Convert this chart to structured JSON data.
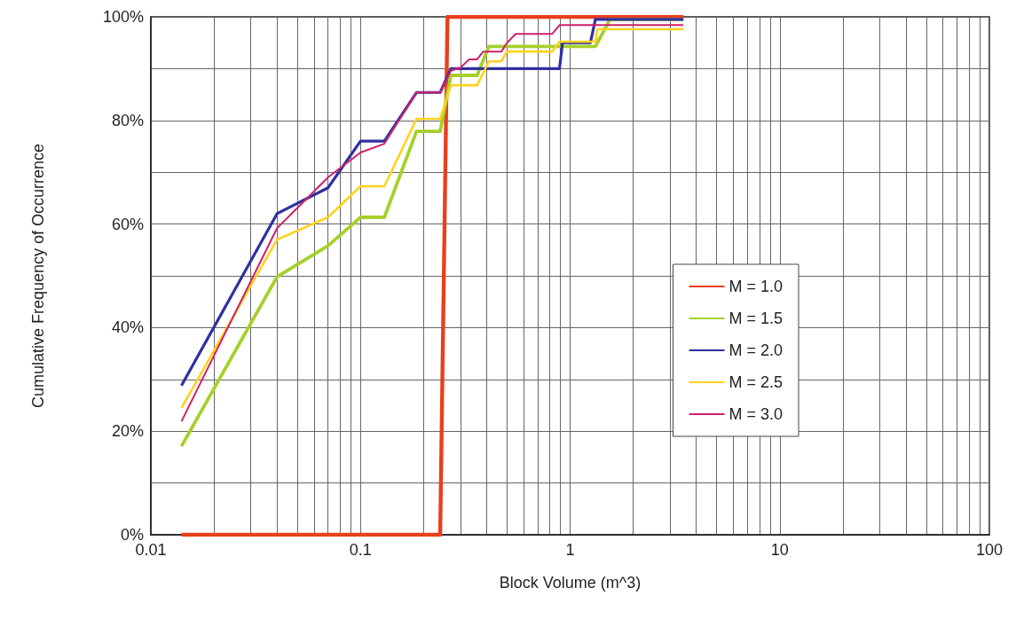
{
  "chart_data": {
    "type": "line",
    "xlabel": "Block Volume (m^3)",
    "ylabel": "Cumulative Frequency of Occurrence",
    "log": "x",
    "grid": true,
    "legend": "right",
    "marker": "none",
    "line_style": "solid",
    "xlim": [
      0.01,
      100
    ],
    "xticks": [
      0.01,
      {
        "value": 0.02,
        "label": null
      },
      {
        "value": 0.03,
        "label": null
      },
      {
        "value": 0.04,
        "label": null
      },
      {
        "value": 0.05,
        "label": null
      },
      {
        "value": 0.06,
        "label": null
      },
      {
        "value": 0.07,
        "label": null
      },
      {
        "value": 0.08,
        "label": null
      },
      {
        "value": 0.09,
        "label": null
      },
      0.1,
      {
        "value": 0.2,
        "label": null
      },
      {
        "value": 0.3,
        "label": null
      },
      {
        "value": 0.4,
        "label": null
      },
      {
        "value": 0.5,
        "label": null
      },
      {
        "value": 0.6,
        "label": null
      },
      {
        "value": 0.7,
        "label": null
      },
      {
        "value": 0.8,
        "label": null
      },
      {
        "value": 0.9,
        "label": null
      },
      1,
      {
        "value": 2,
        "label": null
      },
      {
        "value": 3,
        "label": null
      },
      {
        "value": 4,
        "label": null
      },
      {
        "value": 5,
        "label": null
      },
      {
        "value": 6,
        "label": null
      },
      {
        "value": 7,
        "label": null
      },
      {
        "value": 8,
        "label": null
      },
      {
        "value": 9,
        "label": null
      },
      10,
      {
        "value": 20,
        "label": null
      },
      {
        "value": 30,
        "label": null
      },
      {
        "value": 40,
        "label": null
      },
      {
        "value": 50,
        "label": null
      },
      {
        "value": 60,
        "label": null
      },
      {
        "value": 70,
        "label": null
      },
      {
        "value": 80,
        "label": null
      },
      {
        "value": 90,
        "label": null
      },
      100
    ],
    "ylim": [
      0,
      100
    ],
    "yticks": [
      {
        "value": 0,
        "label": "0%"
      },
      {
        "value": 10,
        "label": null
      },
      {
        "value": 20,
        "label": "20%"
      },
      {
        "value": 30,
        "label": null
      },
      {
        "value": 40,
        "label": "40%"
      },
      {
        "value": 50,
        "label": null
      },
      {
        "value": 60,
        "label": "60%"
      },
      {
        "value": 70,
        "label": null
      },
      {
        "value": 80,
        "label": "80%"
      },
      {
        "value": 90,
        "label": null
      },
      {
        "value": 100,
        "label": "100%"
      }
    ],
    "series": [
      {
        "name": "M = 1.0",
        "color": "#e8401c",
        "x": [
          0.014,
          0.24,
          0.26,
          3.47
        ],
        "values": [
          0,
          0,
          100,
          100
        ]
      },
      {
        "name": "M = 1.5",
        "color": "#a6d02a",
        "x": [
          0.014,
          0.04,
          0.07,
          0.1,
          0.13,
          0.185,
          0.24,
          0.27,
          0.36,
          0.41,
          0.82,
          1.32,
          1.55,
          3.47
        ],
        "values": [
          17.1,
          49.8,
          55.8,
          61.3,
          61.3,
          77.9,
          77.9,
          88.7,
          88.7,
          94.3,
          94.3,
          94.3,
          99.5,
          99.5
        ]
      },
      {
        "name": "M = 2.0",
        "color": "#3030a0",
        "x": [
          0.014,
          0.04,
          0.07,
          0.1,
          0.13,
          0.185,
          0.24,
          0.27,
          0.89,
          0.92,
          1.25,
          1.32,
          3.47
        ],
        "values": [
          28.8,
          62,
          67,
          76,
          76,
          85.4,
          85.4,
          90,
          90,
          95,
          95,
          99.5,
          99.5
        ]
      },
      {
        "name": "M = 2.5",
        "color": "#ffd21c",
        "x": [
          0.014,
          0.04,
          0.07,
          0.1,
          0.13,
          0.185,
          0.24,
          0.27,
          0.36,
          0.41,
          0.47,
          0.5,
          0.82,
          0.89,
          1.32,
          1.35,
          3.47
        ],
        "values": [
          24.5,
          57,
          61.3,
          67.3,
          67.3,
          80.3,
          80.3,
          86.8,
          86.8,
          91.4,
          91.4,
          93.3,
          93.3,
          95.2,
          95.2,
          97.6,
          97.6
        ]
      },
      {
        "name": "M = 3.0",
        "color": "#d0206a",
        "x": [
          0.014,
          0.04,
          0.07,
          0.1,
          0.13,
          0.185,
          0.24,
          0.27,
          0.3,
          0.33,
          0.36,
          0.385,
          0.47,
          0.5,
          0.55,
          0.82,
          0.89,
          3.47
        ],
        "values": [
          21.9,
          59.2,
          69,
          73.8,
          75.5,
          85.4,
          85.4,
          89.6,
          90.2,
          91.8,
          91.8,
          93.3,
          93.3,
          95,
          96.7,
          96.7,
          98.4,
          98.4
        ]
      }
    ]
  }
}
